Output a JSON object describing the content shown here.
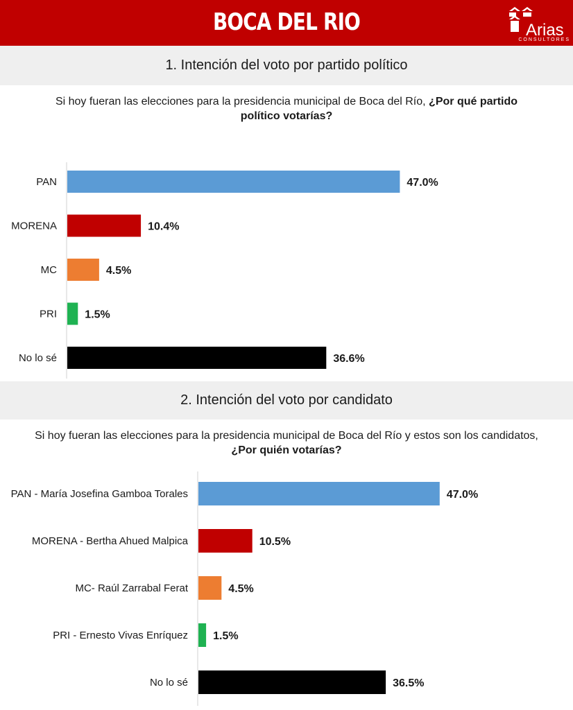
{
  "header": {
    "title": "BOCA DEL RIO",
    "logo_name": "Arias",
    "logo_sub": "CONSULTORES"
  },
  "colors": {
    "header": "#c00000",
    "band": "#efefef",
    "pan": "#5b9bd5",
    "morena": "#c00000",
    "mc": "#ed7d31",
    "pri": "#1fb252",
    "nolose": "#000000"
  },
  "sections": [
    {
      "title": "1. Intención del voto por partido político",
      "question_plain": "Si hoy fueran las elecciones para la presidencia municipal de Boca del Río,",
      "question_bold": "¿Por qué partido político votarías?"
    },
    {
      "title": "2. Intención del voto por candidato",
      "question_plain": "Si hoy fueran las elecciones para la presidencia municipal de Boca del Río y estos son los candidatos,",
      "question_bold": "¿Por quién votarías?"
    }
  ],
  "chart_data": [
    {
      "type": "bar",
      "orientation": "horizontal",
      "categories": [
        "PAN",
        "MORENA",
        "MC",
        "PRI",
        "No lo sé"
      ],
      "values": [
        47.0,
        10.4,
        4.5,
        1.5,
        36.6
      ],
      "labels": [
        "47.0%",
        "10.4%",
        "4.5%",
        "1.5%",
        "36.6%"
      ],
      "colors": [
        "#5b9bd5",
        "#c00000",
        "#ed7d31",
        "#1fb252",
        "#000000"
      ],
      "xlim": [
        0,
        50
      ],
      "grid": false
    },
    {
      "type": "bar",
      "orientation": "horizontal",
      "categories": [
        "PAN - María Josefina Gamboa Torales",
        "MORENA - Bertha Ahued Malpica",
        "MC- Raúl Zarrabal Ferat",
        "PRI - Ernesto Vivas Enríquez",
        "No lo sé"
      ],
      "values": [
        47.0,
        10.5,
        4.5,
        1.5,
        36.5
      ],
      "labels": [
        "47.0%",
        "10.5%",
        "4.5%",
        "1.5%",
        "36.5%"
      ],
      "colors": [
        "#5b9bd5",
        "#c00000",
        "#ed7d31",
        "#1fb252",
        "#000000"
      ],
      "xlim": [
        0,
        50
      ],
      "grid": false
    }
  ]
}
